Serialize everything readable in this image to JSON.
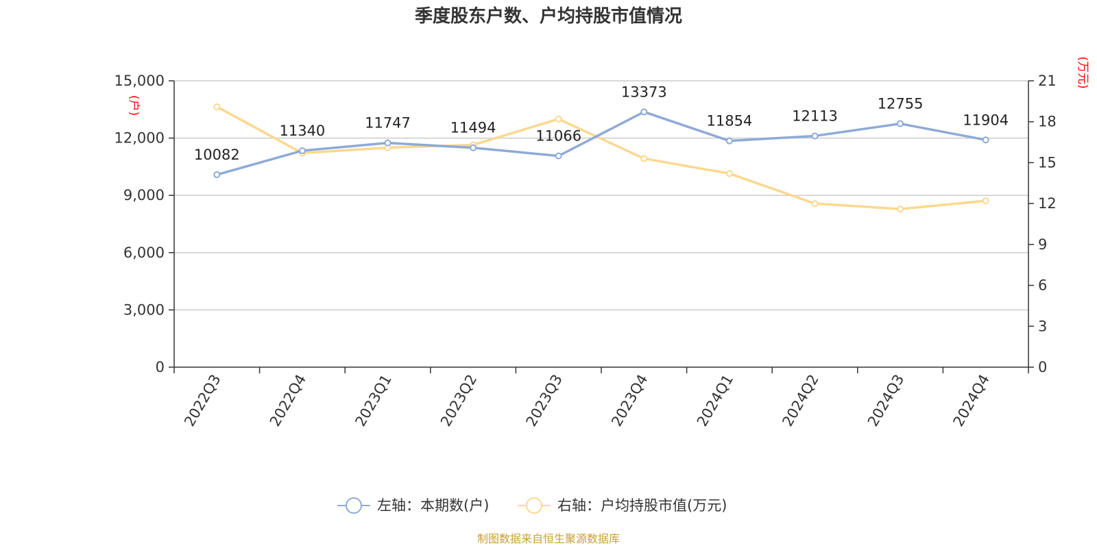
{
  "colors": {
    "left_series": "#8eaad6",
    "right_series": "#fbd88f",
    "unit_label": "#ff0000",
    "source": "#c8a032",
    "grid": "#cccccc",
    "axis": "#333333"
  },
  "chart_data": {
    "type": "line",
    "title": "季度股东户数、户均持股市值情况",
    "categories": [
      "2022Q3",
      "2022Q4",
      "2023Q1",
      "2023Q2",
      "2023Q3",
      "2023Q4",
      "2024Q1",
      "2024Q2",
      "2024Q3",
      "2024Q4"
    ],
    "y_left": {
      "unit": "(户)",
      "ylim": [
        0,
        15000
      ],
      "ticks": [
        "0",
        "3,000",
        "6,000",
        "9,000",
        "12,000",
        "15,000"
      ],
      "tick_values": [
        0,
        3000,
        6000,
        9000,
        12000,
        15000
      ]
    },
    "y_right": {
      "unit": "(万元)",
      "ylim": [
        0,
        21
      ],
      "ticks": [
        "0",
        "3",
        "6",
        "9",
        "12",
        "15",
        "18",
        "21"
      ],
      "tick_values": [
        0,
        3,
        6,
        9,
        12,
        15,
        18,
        21
      ]
    },
    "grid": true,
    "legend_position": "bottom-center",
    "series": [
      {
        "name": "左轴：本期数(户)",
        "axis": "left",
        "values": [
          10082,
          11340,
          11747,
          11494,
          11066,
          13373,
          11854,
          12113,
          12755,
          11904
        ],
        "labels": [
          "10082",
          "11340",
          "11747",
          "11494",
          "11066",
          "13373",
          "11854",
          "12113",
          "12755",
          "11904"
        ]
      },
      {
        "name": "右轴：户均持股市值(万元)",
        "axis": "right",
        "values": [
          19.1,
          15.7,
          16.1,
          16.3,
          18.2,
          15.3,
          14.2,
          12.0,
          11.6,
          12.2
        ]
      }
    ],
    "source": "制图数据来自恒生聚源数据库"
  }
}
